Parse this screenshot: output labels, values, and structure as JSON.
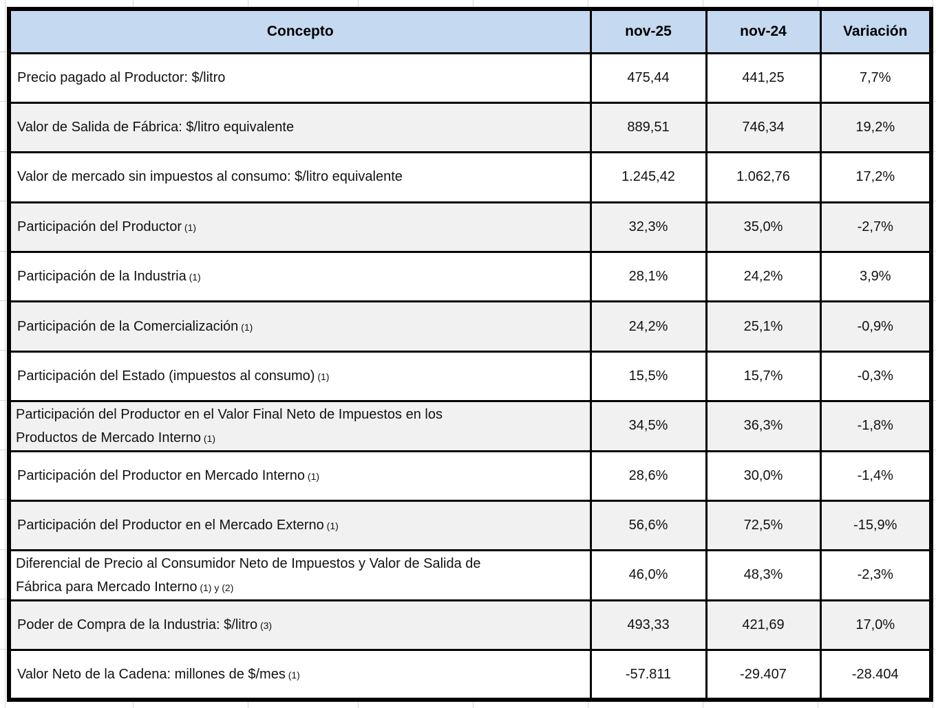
{
  "colors": {
    "header_bg": "#c5d9f1",
    "row_stripe": "#f1f1f1",
    "border": "#000000",
    "gridline": "#d6d6d6"
  },
  "table": {
    "headers": [
      "Concepto",
      "nov-25",
      "nov-24",
      "Variación"
    ],
    "rows": [
      {
        "concepto_lines": [
          "Precio pagado al Productor: $/litro"
        ],
        "note": "",
        "values": [
          "475,44",
          "441,25",
          "7,7%"
        ]
      },
      {
        "concepto_lines": [
          "Valor de Salida de Fábrica: $/litro equivalente"
        ],
        "note": "",
        "values": [
          "889,51",
          "746,34",
          "19,2%"
        ]
      },
      {
        "concepto_lines": [
          "Valor de mercado sin impuestos al consumo: $/litro equivalente"
        ],
        "note": "",
        "values": [
          "1.245,42",
          "1.062,76",
          "17,2%"
        ]
      },
      {
        "concepto_lines": [
          "Participación del Productor"
        ],
        "note": "(1)",
        "values": [
          "32,3%",
          "35,0%",
          "-2,7%"
        ]
      },
      {
        "concepto_lines": [
          "Participación de la Industria"
        ],
        "note": "(1)",
        "values": [
          "28,1%",
          "24,2%",
          "3,9%"
        ]
      },
      {
        "concepto_lines": [
          "Participación de la Comercialización"
        ],
        "note": "(1)",
        "values": [
          "24,2%",
          "25,1%",
          "-0,9%"
        ]
      },
      {
        "concepto_lines": [
          "Participación del Estado (impuestos al consumo)"
        ],
        "note": "(1)",
        "values": [
          "15,5%",
          "15,7%",
          "-0,3%"
        ]
      },
      {
        "concepto_lines": [
          "Participación del Productor en el Valor Final Neto de Impuestos en los",
          "Productos de Mercado Interno"
        ],
        "note": "(1)",
        "values": [
          "34,5%",
          "36,3%",
          "-1,8%"
        ]
      },
      {
        "concepto_lines": [
          "Participación del Productor en Mercado Interno"
        ],
        "note": "(1)",
        "values": [
          "28,6%",
          "30,0%",
          "-1,4%"
        ]
      },
      {
        "concepto_lines": [
          "Participación del Productor en el Mercado Externo"
        ],
        "note": "(1)",
        "values": [
          "56,6%",
          "72,5%",
          "-15,9%"
        ]
      },
      {
        "concepto_lines": [
          "Diferencial de Precio al Consumidor Neto de Impuestos y Valor de Salida de",
          "Fábrica para Mercado Interno"
        ],
        "note": "(1) y (2)",
        "values": [
          "46,0%",
          "48,3%",
          "-2,3%"
        ]
      },
      {
        "concepto_lines": [
          "Poder de Compra de la Industria: $/litro"
        ],
        "note": "(3)",
        "values": [
          "493,33",
          "421,69",
          "17,0%"
        ]
      },
      {
        "concepto_lines": [
          "Valor Neto de la Cadena: millones de $/mes"
        ],
        "note": "(1)",
        "values": [
          "-57.811",
          "-29.407",
          "-28.404"
        ]
      }
    ]
  }
}
